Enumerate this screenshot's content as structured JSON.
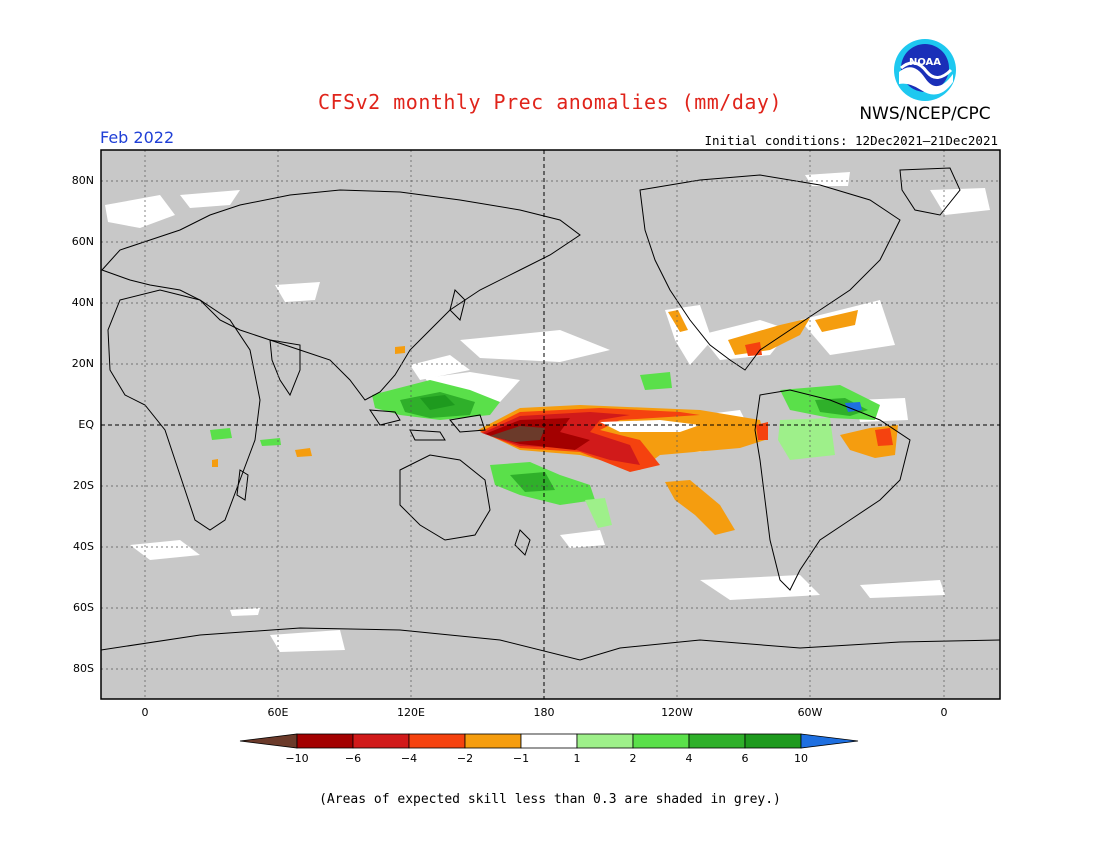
{
  "title": "CFSv2 monthly Prec anomalies (mm/day)",
  "agency": "NWS/NCEP/CPC",
  "logo_text": "NOAA",
  "month": "Feb 2022",
  "initial_conditions": "Initial conditions: 12Dec2021–21Dec2021",
  "lat_labels": [
    "80N",
    "60N",
    "40N",
    "20N",
    "EQ",
    "20S",
    "40S",
    "60S",
    "80S"
  ],
  "lon_labels": [
    "0",
    "60E",
    "120E",
    "180",
    "120W",
    "60W",
    "0"
  ],
  "colorbar": {
    "labels": [
      "−10",
      "−6",
      "−4",
      "−2",
      "−1",
      "1",
      "2",
      "4",
      "6",
      "10"
    ],
    "colors": [
      "#6b3a2a",
      "#a30000",
      "#d11a1a",
      "#f5420f",
      "#f59d0f",
      "#ffffff",
      "#9ef08a",
      "#5ae04a",
      "#2fb02a",
      "#1e9a1e",
      "#1e6fe0"
    ]
  },
  "colors": {
    "land_ocean_grey": "#c8c8c8",
    "title_red": "#e0241b",
    "month_blue": "#1f3fd6"
  },
  "footnote": "(Areas of expected skill less than 0.3 are shaded in grey.)"
}
